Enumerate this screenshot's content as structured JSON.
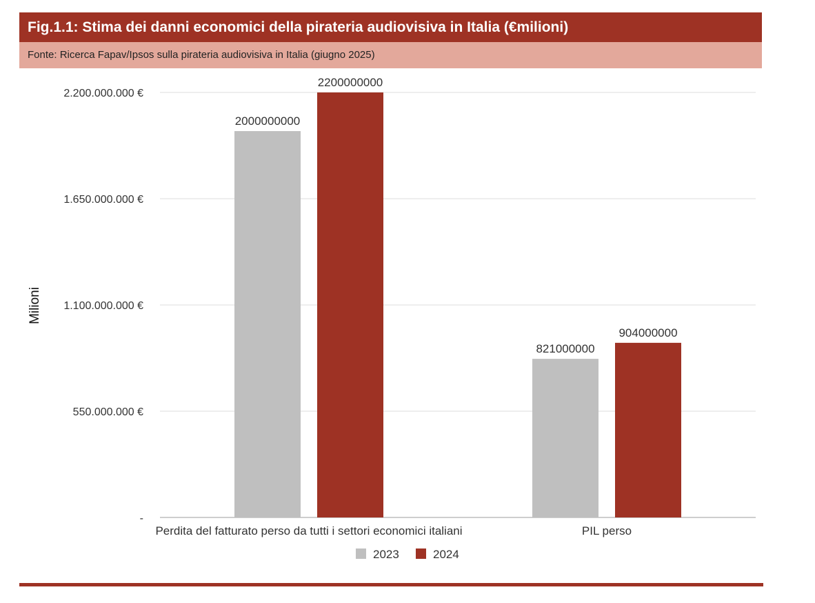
{
  "header": {
    "title": "Fig.1.1: Stima dei danni economici della pirateria audiovisiva in Italia (€milioni)",
    "source": "Fonte: Ricerca Fapav/Ipsos sulla pirateria audiovisiva in Italia (giugno 2025)"
  },
  "chart_data": {
    "type": "bar",
    "title": "Fig.1.1: Stima dei danni economici della pirateria audiovisiva in Italia (€milioni)",
    "xlabel": "",
    "ylabel": "Milioni",
    "categories": [
      "Perdita del fatturato perso da tutti i settori economici italiani",
      "PIL perso"
    ],
    "series": [
      {
        "name": "2023",
        "color": "#bfbfbf",
        "values": [
          2000000000,
          821000000
        ]
      },
      {
        "name": "2024",
        "color": "#9e3224",
        "values": [
          2200000000,
          904000000
        ]
      }
    ],
    "data_labels": [
      [
        "2000000000",
        "821000000"
      ],
      [
        "2200000000",
        "904000000"
      ]
    ],
    "ylim": [
      0,
      2200000000
    ],
    "yticks": [
      0,
      550000000,
      1100000000,
      1650000000,
      2200000000
    ],
    "ytick_labels": [
      "-",
      "550.000.000 €",
      "1.100.000.000 €",
      "1.650.000.000 €",
      "2.200.000.000 €"
    ],
    "grid": true,
    "legend_position": "bottom"
  }
}
